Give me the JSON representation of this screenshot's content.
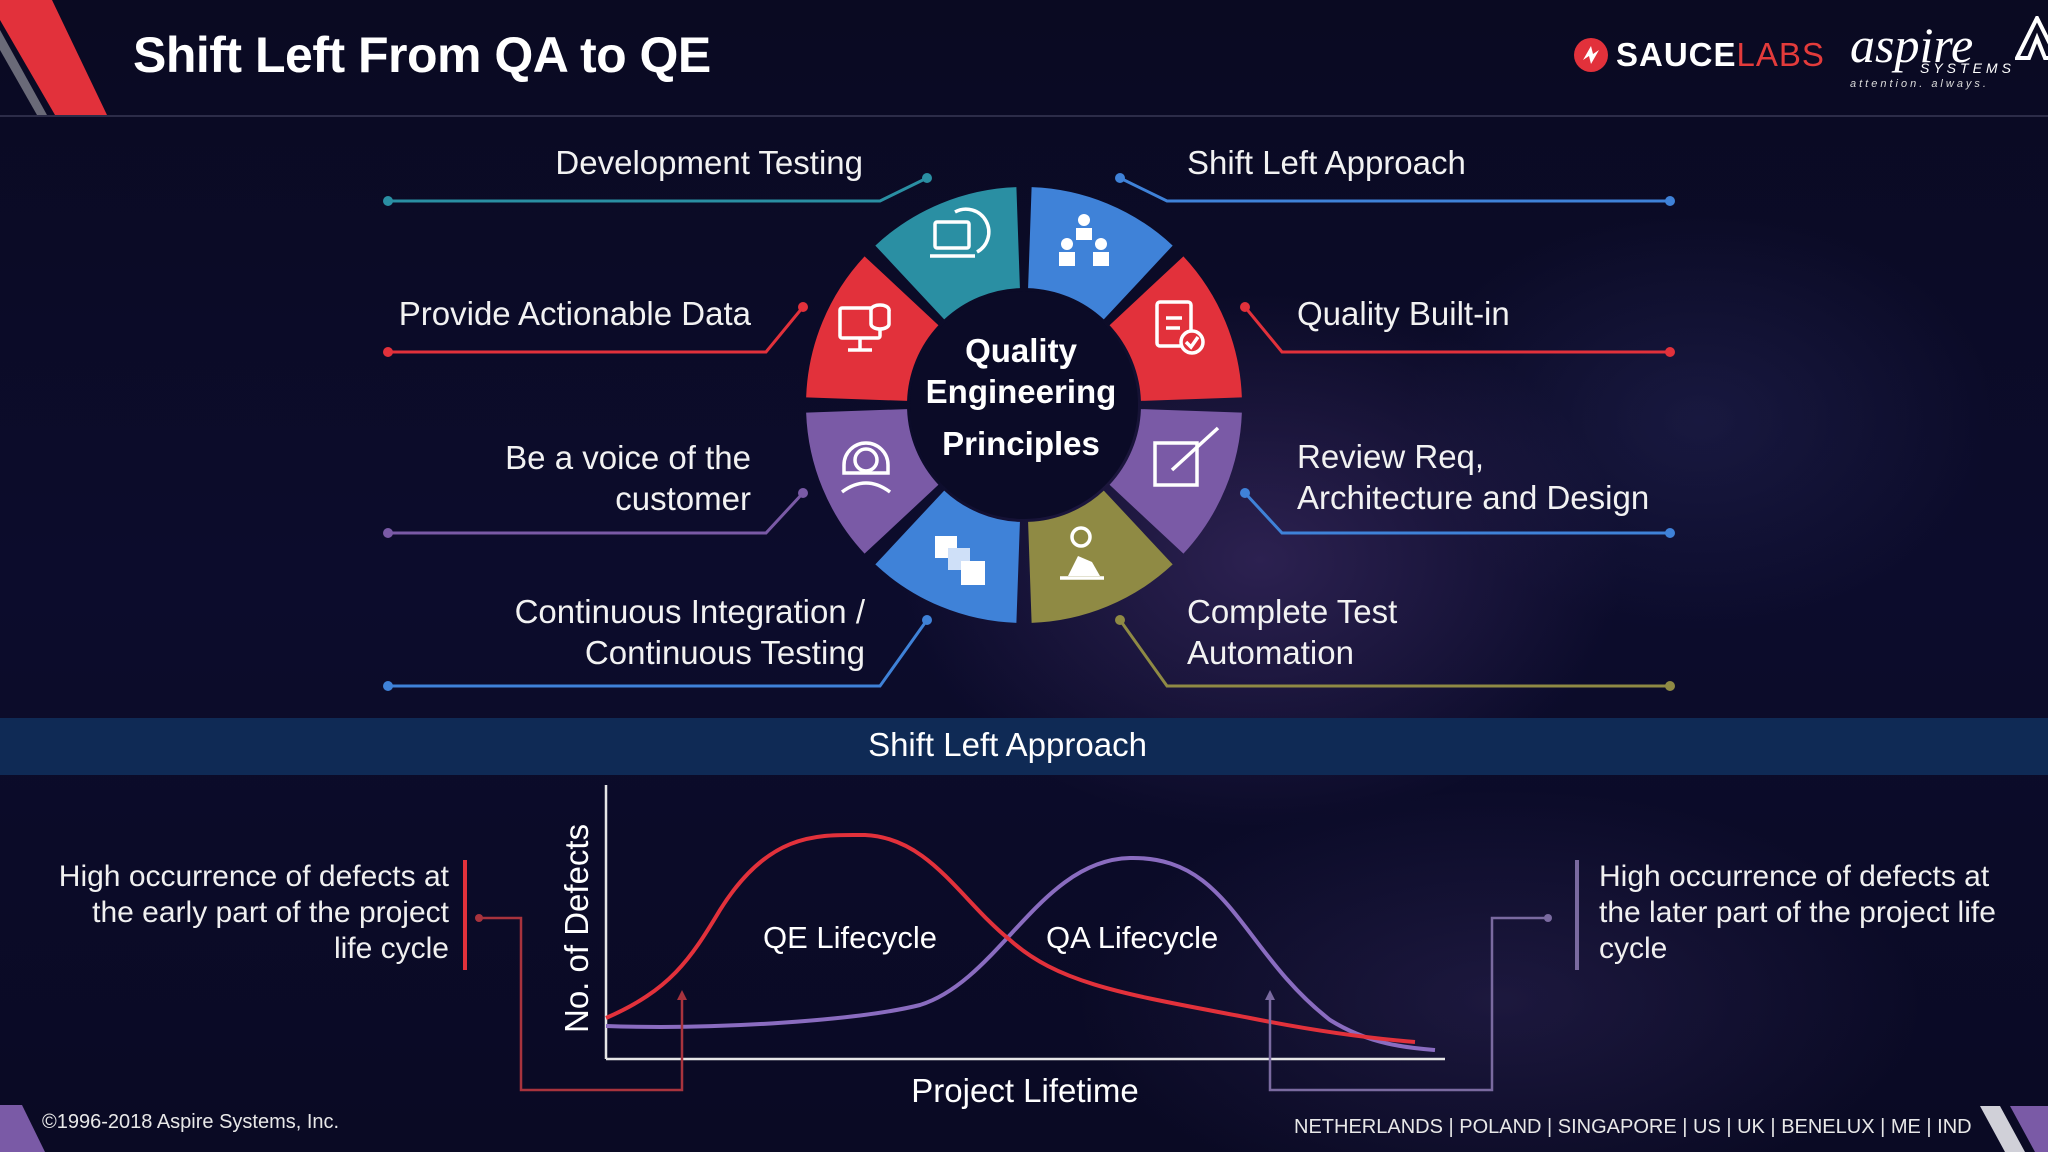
{
  "title": "Shift Left From QA to QE",
  "logos": {
    "sauce_part1": "SAUCE",
    "sauce_part2": "LABS",
    "aspire": "aspire",
    "aspire_sub": "SYSTEMS",
    "aspire_tagline": "attention. always."
  },
  "center": {
    "line1": "Quality",
    "line2": "Engineering",
    "line3": "Principles"
  },
  "principles": {
    "development_testing": {
      "label": "Development Testing",
      "color": "#2a8fa3",
      "icon": "computer-screen-icon"
    },
    "shift_left_approach": {
      "label": "Shift Left Approach",
      "color": "#3f82d8",
      "icon": "team-meeting-icon"
    },
    "quality_built_in": {
      "label": "Quality Built-in",
      "color": "#e2313b",
      "icon": "clipboard-check-icon"
    },
    "review_req": {
      "line1": "Review Req,",
      "line2": "Architecture and Design",
      "color": "#7a5aa6",
      "icon": "pencil-edit-icon"
    },
    "complete_test_automation": {
      "line1": "Complete Test",
      "line2": "Automation",
      "color": "#8f8a44",
      "icon": "idea-robot-icon"
    },
    "ci_ct": {
      "line1": "Continuous Integration /",
      "line2": "Continuous Testing",
      "color": "#3f82d8",
      "icon": "copy-squares-icon"
    },
    "voice_of_customer": {
      "line1": "Be a voice of the",
      "line2": "customer",
      "color": "#7a5aa6",
      "icon": "support-agent-icon"
    },
    "actionable_data": {
      "label": "Provide Actionable Data",
      "color": "#e2313b",
      "icon": "monitor-database-icon"
    }
  },
  "band_title": "Shift Left Approach",
  "chart": {
    "ylabel": "No. of Defects",
    "xlabel": "Project Lifetime",
    "qe_label": "QE Lifecycle",
    "qa_label": "QA Lifecycle",
    "qe_color": "#e2313b",
    "qa_color": "#8a6cc0"
  },
  "left_note": {
    "line1": "High occurrence of defects at",
    "line2": "the early part of the project",
    "line3": "life cycle"
  },
  "right_note": {
    "line1": "High occurrence of defects at",
    "line2": "the later part of the project life",
    "line3": "cycle"
  },
  "footer": {
    "copyright": "©1996-2018 Aspire Systems, Inc.",
    "locations": "NETHERLANDS | POLAND | SINGAPORE | US | UK | BENELUX | ME | IND"
  },
  "colors": {
    "background": "#0a0b26",
    "band": "#0f2a55",
    "accent_red": "#e2313b"
  }
}
